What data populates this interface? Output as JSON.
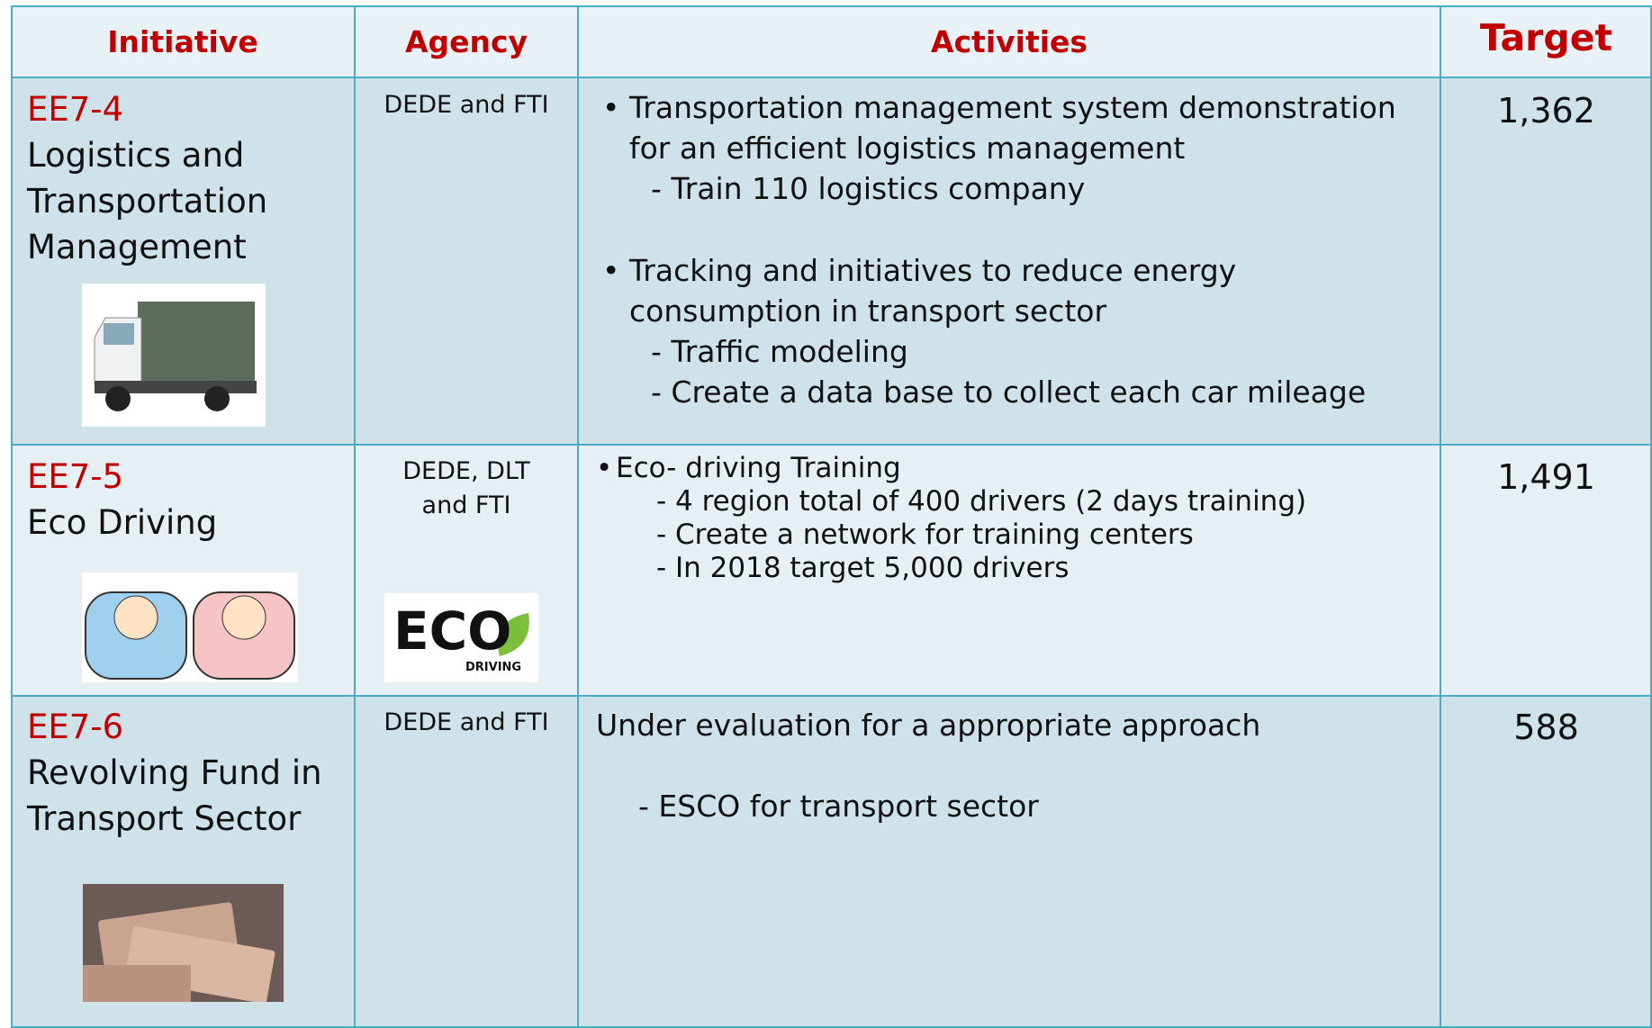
{
  "table": {
    "headers": [
      "Initiative",
      "Agency",
      "Activities",
      "Target"
    ],
    "rows": [
      {
        "code": "EE7-4",
        "name": [
          "Logistics and",
          "Transportation",
          "Management"
        ],
        "agency": [
          "DEDE and FTI"
        ],
        "activities": [
          {
            "lines": [
              "Transportation management system demonstration",
              "for an efficient logistics management"
            ],
            "items": [
              "- Train 110 logistics company"
            ]
          },
          {
            "lines": [
              "Tracking and initiatives to reduce energy",
              "consumption in transport sector"
            ],
            "items": [
              "- Traffic modeling",
              "- Create a data base to collect each car mileage"
            ]
          }
        ],
        "target": "1,362"
      },
      {
        "code": "EE7-5",
        "name": [
          "Eco Driving"
        ],
        "agency": [
          "DEDE, DLT",
          "and FTI"
        ],
        "logo": {
          "main": "ECO",
          "sub": "DRIVING"
        },
        "activities": [
          {
            "lines": [
              "Eco- driving Training"
            ],
            "items": [
              "- 4 region total of 400 drivers (2 days training)",
              "- Create a network for training centers",
              "- In 2018 target 5,000 drivers"
            ]
          }
        ],
        "target": "1,491"
      },
      {
        "code": "EE7-6",
        "name": [
          "Revolving Fund in",
          "Transport Sector"
        ],
        "agency": [
          "DEDE and FTI"
        ],
        "activities": [
          {
            "lines": [
              "Under evaluation for a appropriate approach"
            ],
            "items": [
              "- ESCO for transport sector"
            ]
          }
        ],
        "target": "588"
      }
    ]
  }
}
